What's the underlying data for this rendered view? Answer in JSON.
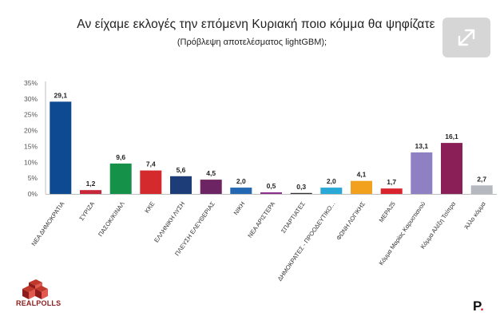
{
  "header": {
    "title": "Αν είχαμε εκλογές την επόμενη Κυριακή ποιο κόμμα θα ψηφίζατε",
    "subtitle": "(Πρόβλεψη αποτελέσματος lightGBM);"
  },
  "branding": {
    "left_logo": "REALPOLLS",
    "right_logo": "P",
    "right_logo_dot": "."
  },
  "colors": {
    "axis": "#bfbfbf",
    "tick_text": "#555555",
    "value_text": "#222222"
  },
  "chart_data": {
    "type": "bar",
    "ylim": [
      0,
      35
    ],
    "yticks": [
      "0%",
      "5%",
      "10%",
      "15%",
      "20%",
      "25%",
      "30%",
      "35%"
    ],
    "ytick_values": [
      0,
      5,
      10,
      15,
      20,
      25,
      30,
      35
    ],
    "grid": false,
    "categories": [
      "ΝΕΑ ΔΗΜΟΚΡΑΤΙΑ",
      "ΣΥΡΙΖΑ",
      "ΠΑΣΟΚ/ΚΙΝΑΛ",
      "ΚΚΕ",
      "ΕΛΛΗΝΙΚΗ ΛΥΣΗ",
      "ΠΛΕΥΣΗ ΕΛΕΥΘΕΡΙΑΣ",
      "ΝΙΚΗ",
      "ΝΕΑ ΑΡΙΣΤΕΡΑ",
      "ΣΠΑΡΤΙΑΤΕΣ",
      "ΔΗΜΟΚΡΑΤΕΣ - ΠΡΟΟΔΕΥΤΙΚΟ...",
      "ΦΩΝΗ ΛΟΓΙΚΗΣ",
      "ΜΕΡΑ25",
      "Κόμμα Μαρίας Καρυστιανού",
      "Κόμμα Αλέξη Τσίπρα",
      "Άλλο κόμμα"
    ],
    "values": [
      29.1,
      1.2,
      9.6,
      7.4,
      5.6,
      4.5,
      2.0,
      0.5,
      0.3,
      2.0,
      4.1,
      1.7,
      13.1,
      16.1,
      2.7
    ],
    "value_labels": [
      "29,1",
      "1,2",
      "9,6",
      "7,4",
      "5,6",
      "4,5",
      "2,0",
      "0,5",
      "0,3",
      "2,0",
      "4,1",
      "1,7",
      "13,1",
      "16,1",
      "2,7"
    ],
    "bar_colors": [
      "#0d4a91",
      "#c8273a",
      "#16914a",
      "#d42a2e",
      "#1c3d77",
      "#6c2462",
      "#2468b4",
      "#8e2f8e",
      "#333333",
      "#2aa8d6",
      "#f2a11f",
      "#d9242d",
      "#8f7fc3",
      "#8a1f57",
      "#b5b9bf"
    ]
  }
}
